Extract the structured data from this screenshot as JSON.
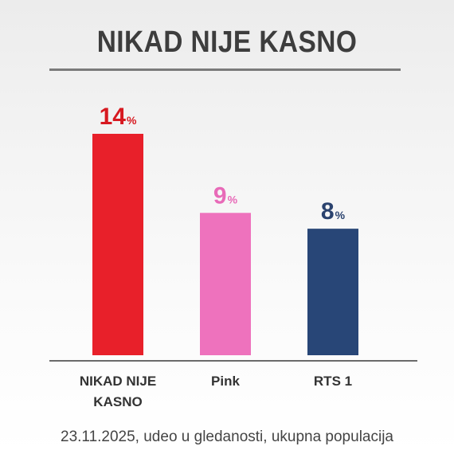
{
  "chart_data": {
    "type": "bar",
    "title": "NIKAD NIJE KASNO",
    "categories": [
      "NIKAD NIJE KASNO",
      "Pink",
      "RTS 1"
    ],
    "category_lines": [
      [
        "NIKAD NIJE",
        "KASNO"
      ],
      [
        "Pink"
      ],
      [
        "RTS 1"
      ]
    ],
    "values": [
      14,
      9,
      8
    ],
    "value_labels": [
      "14",
      "9",
      "8"
    ],
    "value_suffix": "%",
    "colors": [
      "#e8202a",
      "#ee72bd",
      "#284677"
    ],
    "label_colors": [
      "#d71920",
      "#e86ab8",
      "#2a426e"
    ],
    "ylim": [
      0,
      15
    ],
    "grid": false,
    "legend": "none"
  },
  "footnote": "23.11.2025, udeo u gledanosti, ukupna populacija"
}
